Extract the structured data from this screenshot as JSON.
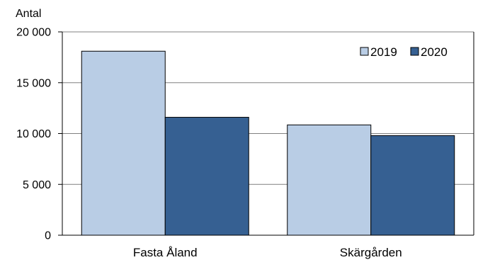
{
  "chart_data": {
    "type": "bar",
    "title": "",
    "xlabel": "",
    "ylabel": "Antal",
    "ylim": [
      0,
      20000
    ],
    "yticks": [
      {
        "value": 0,
        "label": "0"
      },
      {
        "value": 5000,
        "label": "5 000"
      },
      {
        "value": 10000,
        "label": "10 000"
      },
      {
        "value": 15000,
        "label": "15 000"
      },
      {
        "value": 20000,
        "label": "20 000"
      }
    ],
    "categories": [
      "Fasta Åland",
      "Skärgården"
    ],
    "series": [
      {
        "name": "2019",
        "values": [
          18100,
          10850
        ],
        "color": "#b9cde5"
      },
      {
        "name": "2020",
        "values": [
          11600,
          9800
        ],
        "color": "#366092"
      }
    ],
    "grid": true,
    "legend": "top-right"
  }
}
